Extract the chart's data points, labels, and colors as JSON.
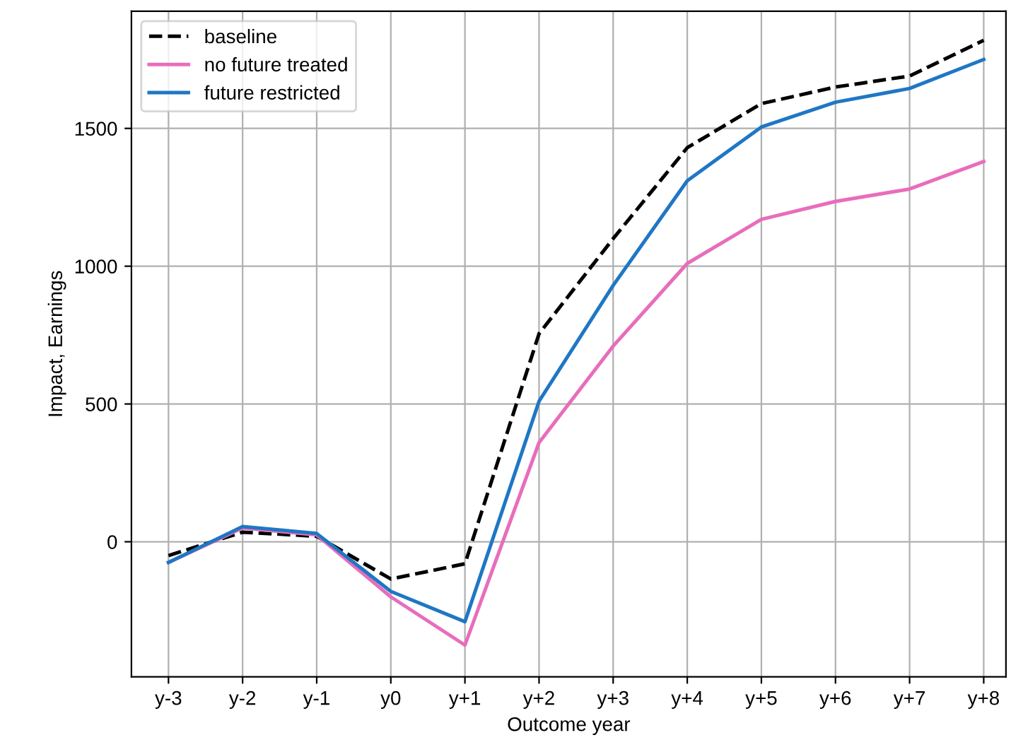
{
  "chart_data": {
    "type": "line",
    "xlabel": "Outcome year",
    "ylabel": "Impact, Earnings",
    "categories": [
      "y-3",
      "y-2",
      "y-1",
      "y0",
      "y+1",
      "y+2",
      "y+3",
      "y+4",
      "y+5",
      "y+6",
      "y+7",
      "y+8"
    ],
    "series": [
      {
        "name": "baseline",
        "color": "#000000",
        "line_style": "dashed",
        "values": [
          -50,
          35,
          20,
          -135,
          -80,
          755,
          1100,
          1430,
          1590,
          1650,
          1690,
          1820
        ]
      },
      {
        "name": "no future treated",
        "color": "#e86dbb",
        "line_style": "solid",
        "values": [
          -75,
          50,
          25,
          -200,
          -375,
          360,
          710,
          1010,
          1170,
          1235,
          1280,
          1380
        ]
      },
      {
        "name": "future restricted",
        "color": "#1f77c4",
        "line_style": "solid",
        "values": [
          -75,
          55,
          30,
          -180,
          -290,
          510,
          930,
          1310,
          1505,
          1595,
          1645,
          1750
        ]
      }
    ],
    "ylim": [
      -490,
      1925
    ],
    "yticks": [
      0,
      500,
      1000,
      1500
    ],
    "grid": true,
    "legend": "top left",
    "marker": "none"
  }
}
